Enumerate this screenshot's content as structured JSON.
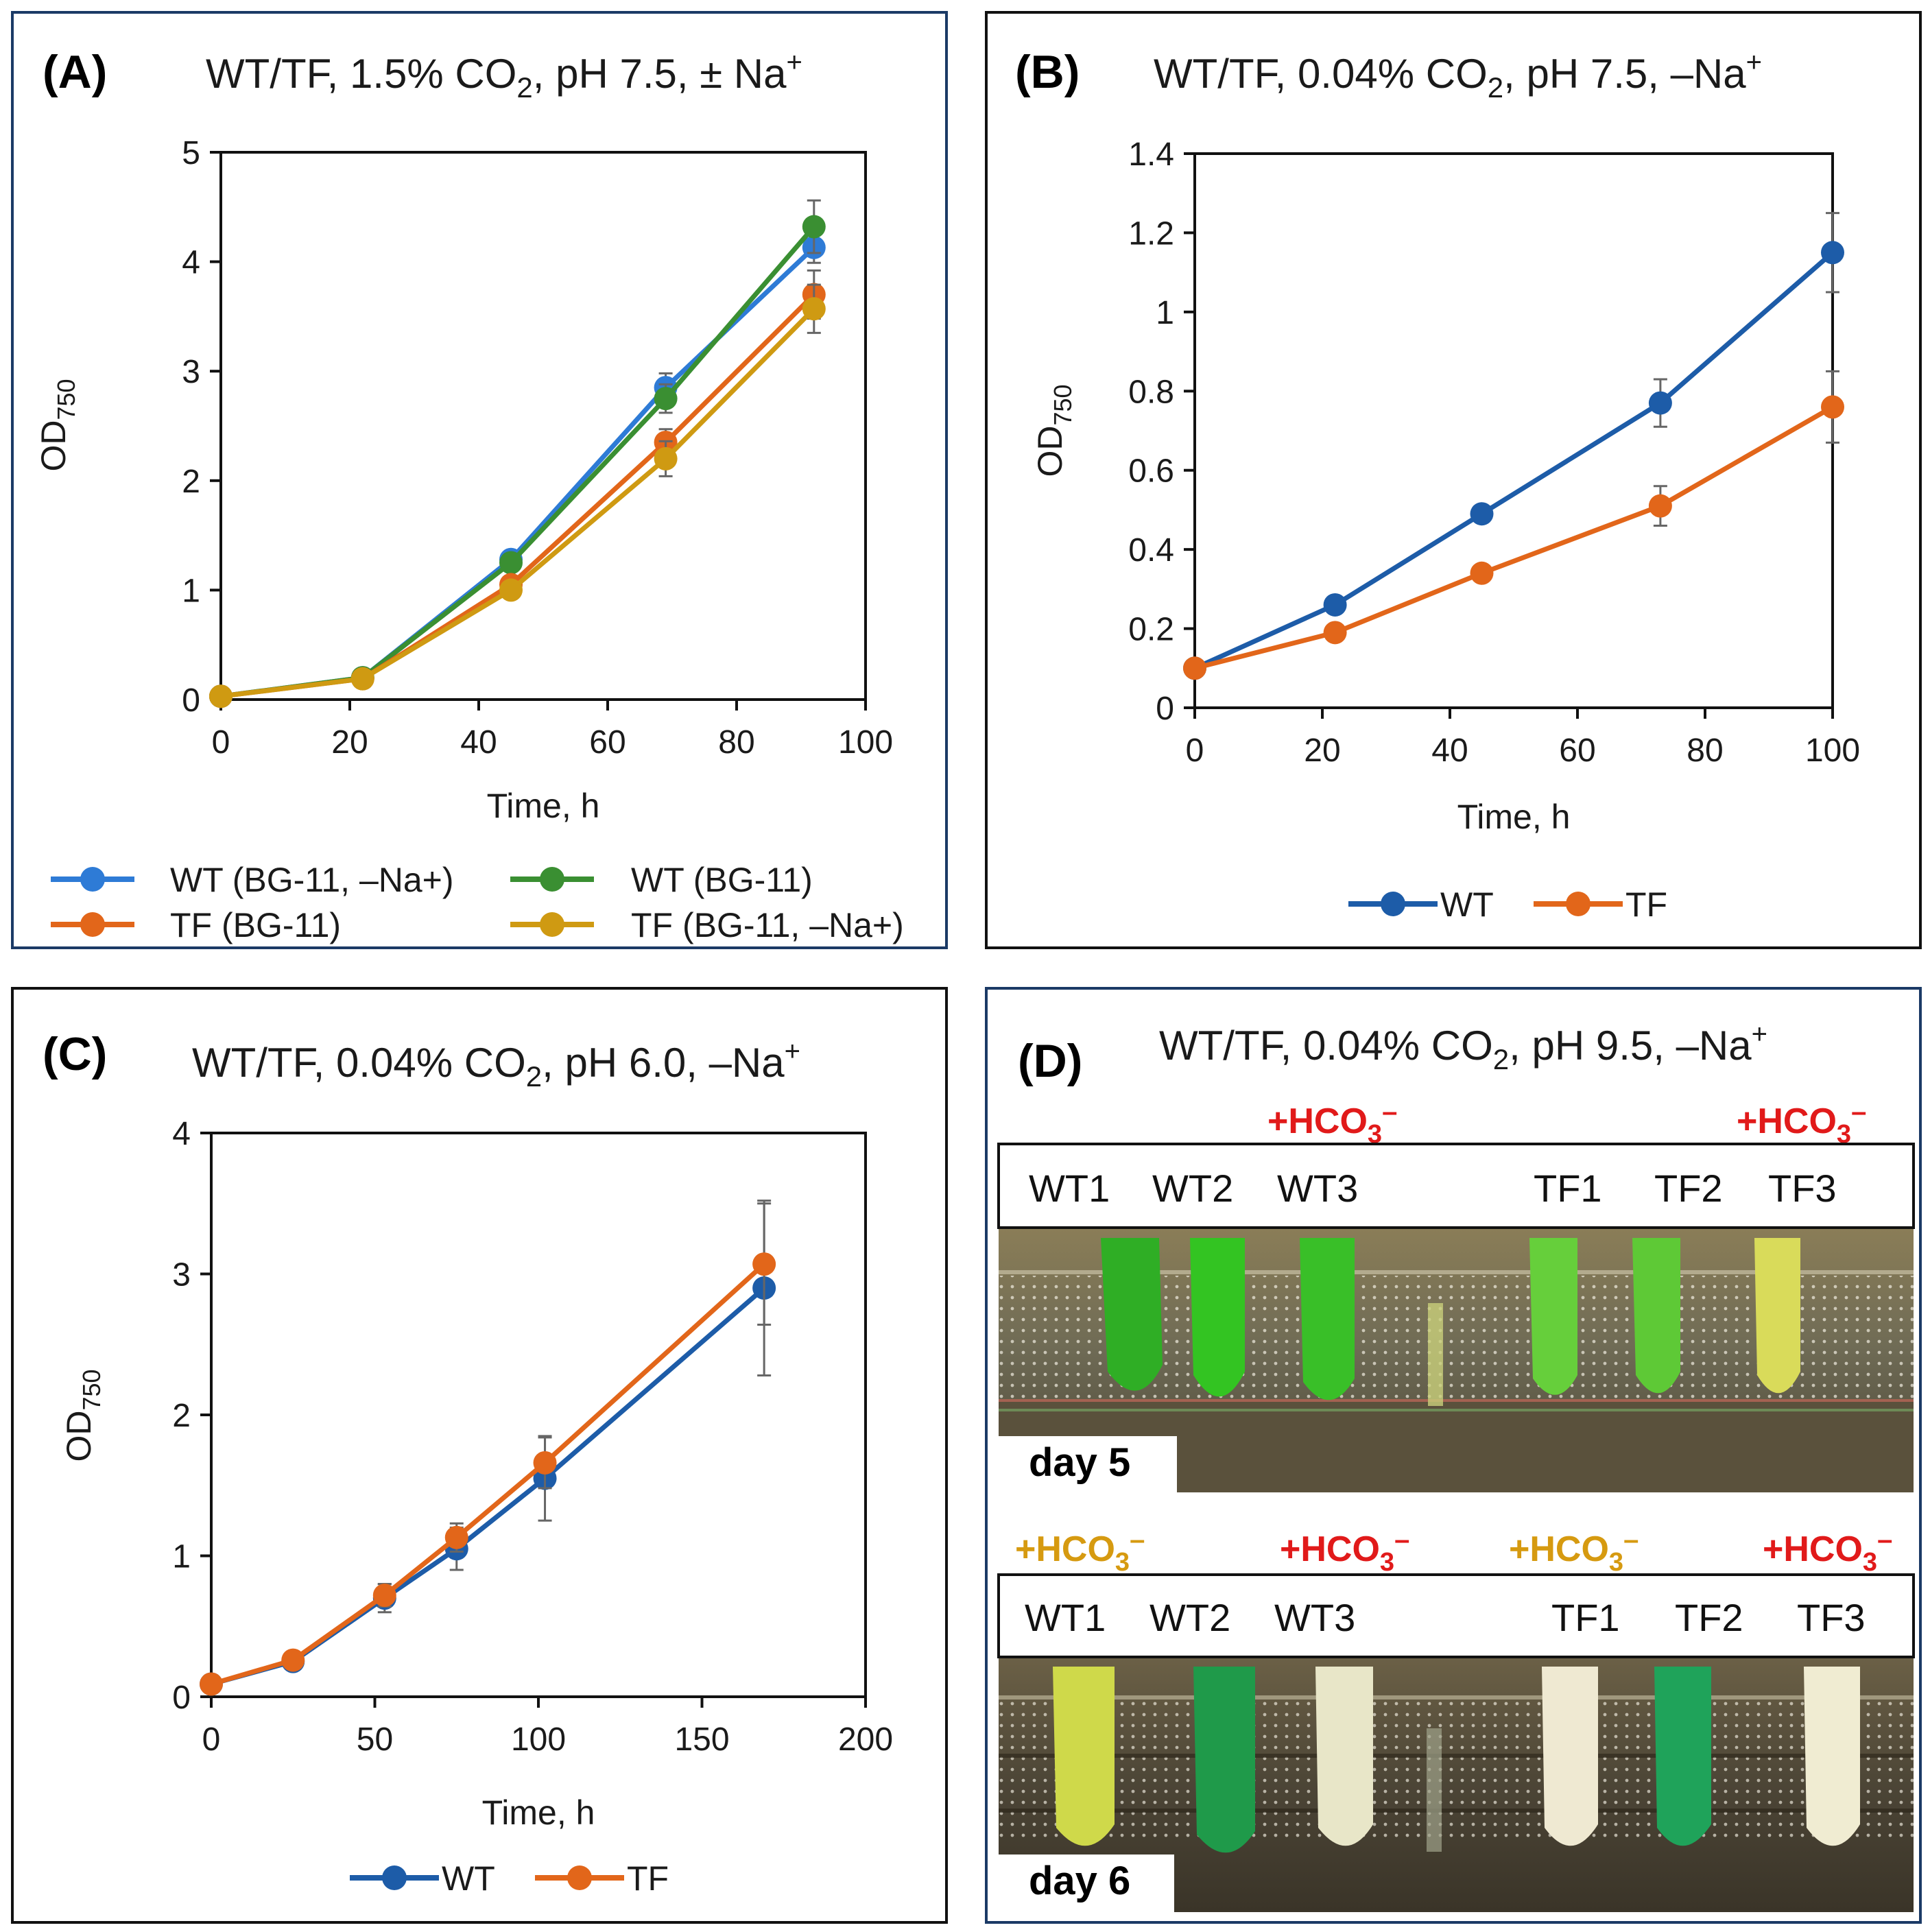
{
  "panels": {
    "A": {
      "label": "(A)",
      "title": "WT/TF, 1.5% CO",
      "title_sub": "2",
      "title_rest": ", pH 7.5, ± Na",
      "title_sup": "+"
    },
    "B": {
      "label": "(B)",
      "title": "WT/TF, 0.04% CO",
      "title_sub": "2",
      "title_rest": ", pH 7.5, –Na",
      "title_sup": "+"
    },
    "C": {
      "label": "(C)",
      "title": "WT/TF, 0.04% CO",
      "title_sub": "2",
      "title_rest": ", pH 6.0, –Na",
      "title_sup": "+"
    },
    "D": {
      "label": "(D)",
      "title": "WT/TF, 0.04% CO",
      "title_sub": "2",
      "title_rest": ", pH 9.5, –Na",
      "title_sup": "+"
    }
  },
  "colors": {
    "blue_light": "#2e7bd6",
    "green": "#3a8f32",
    "orange": "#e2661a",
    "gold": "#cf9a12",
    "blue_dark": "#1d5ca8",
    "errorbar": "#666666",
    "hco_red": "#e11a1a",
    "hco_gold": "#d69a10",
    "panel_border": "#1b3a66"
  },
  "chart_data": [
    {
      "id": "A",
      "type": "line",
      "xlabel": "Time, h",
      "ylabel": "OD",
      "ylabel_sub": "750",
      "xlim": [
        0,
        100
      ],
      "ylim": [
        0,
        5
      ],
      "xticks": [
        "0",
        "20",
        "40",
        "60",
        "80",
        "100"
      ],
      "yticks": [
        "0",
        "1",
        "2",
        "3",
        "4",
        "5"
      ],
      "legend_position": "bottom",
      "series": [
        {
          "name": "WT (BG-11, –Na+)",
          "color": "#2e7bd6",
          "x": [
            0,
            22,
            45,
            69,
            92
          ],
          "y": [
            0.03,
            0.2,
            1.28,
            2.85,
            4.13
          ],
          "err": [
            0,
            0,
            0,
            0.13,
            0.14
          ]
        },
        {
          "name": "WT (BG-11)",
          "color": "#3a8f32",
          "x": [
            0,
            22,
            45,
            69,
            92
          ],
          "y": [
            0.03,
            0.2,
            1.25,
            2.75,
            4.32
          ],
          "err": [
            0,
            0,
            0,
            0.13,
            0.24
          ]
        },
        {
          "name": "TF (BG-11)",
          "color": "#e2661a",
          "x": [
            0,
            22,
            45,
            69,
            92
          ],
          "y": [
            0.03,
            0.19,
            1.05,
            2.35,
            3.7
          ],
          "err": [
            0,
            0,
            0,
            0.12,
            0.22
          ]
        },
        {
          "name": "TF (BG-11, –Na+)",
          "color": "#cf9a12",
          "x": [
            0,
            22,
            45,
            69,
            92
          ],
          "y": [
            0.03,
            0.19,
            1.0,
            2.2,
            3.57
          ],
          "err": [
            0,
            0,
            0,
            0.16,
            0.22
          ]
        }
      ]
    },
    {
      "id": "B",
      "type": "line",
      "xlabel": "Time, h",
      "ylabel": "OD",
      "ylabel_sub": "750",
      "xlim": [
        0,
        100
      ],
      "ylim": [
        0,
        1.4
      ],
      "xticks": [
        "0",
        "20",
        "40",
        "60",
        "80",
        "100"
      ],
      "yticks": [
        "0",
        "0.2",
        "0.4",
        "0.6",
        "0.8",
        "1",
        "1.2",
        "1.4"
      ],
      "legend_position": "bottom",
      "series": [
        {
          "name": "WT",
          "color": "#1d5ca8",
          "x": [
            0,
            22,
            45,
            73,
            100
          ],
          "y": [
            0.1,
            0.26,
            0.49,
            0.77,
            1.15
          ],
          "err": [
            0,
            0,
            0,
            0.06,
            0.1
          ]
        },
        {
          "name": "TF",
          "color": "#e2661a",
          "x": [
            0,
            22,
            45,
            73,
            100
          ],
          "y": [
            0.1,
            0.19,
            0.34,
            0.51,
            0.76
          ],
          "err": [
            0,
            0,
            0,
            0.05,
            0.09
          ]
        }
      ]
    },
    {
      "id": "C",
      "type": "line",
      "xlabel": "Time, h",
      "ylabel": "OD",
      "ylabel_sub": "750",
      "xlim": [
        0,
        200
      ],
      "ylim": [
        0,
        4
      ],
      "xticks": [
        "0",
        "50",
        "100",
        "150",
        "200"
      ],
      "yticks": [
        "0",
        "1",
        "2",
        "3",
        "4"
      ],
      "legend_position": "bottom",
      "series": [
        {
          "name": "WT",
          "color": "#1d5ca8",
          "x": [
            0,
            25,
            53,
            75,
            102,
            169
          ],
          "y": [
            0.09,
            0.25,
            0.7,
            1.05,
            1.55,
            2.9
          ],
          "err": [
            0,
            0,
            0.1,
            0.15,
            0.3,
            0.62
          ]
        },
        {
          "name": "TF",
          "color": "#e2661a",
          "x": [
            0,
            25,
            53,
            75,
            102,
            169
          ],
          "y": [
            0.09,
            0.26,
            0.72,
            1.13,
            1.66,
            3.07
          ],
          "err": [
            0,
            0,
            0.08,
            0.1,
            0.18,
            0.43
          ]
        }
      ]
    }
  ],
  "photos": {
    "day5": {
      "day_label": "day 5",
      "tubes": [
        "WT1",
        "WT2",
        "WT3",
        "TF1",
        "TF2",
        "TF3"
      ],
      "hco_labels": [
        {
          "tube": "WT3",
          "text": "+HCO",
          "sub": "3",
          "sup": "–",
          "color": "#e11a1a"
        },
        {
          "tube": "TF3",
          "text": "+HCO",
          "sub": "3",
          "sup": "–",
          "color": "#e11a1a"
        }
      ]
    },
    "day6": {
      "day_label": "day 6",
      "tubes": [
        "WT1",
        "WT2",
        "WT3",
        "TF1",
        "TF2",
        "TF3"
      ],
      "hco_labels": [
        {
          "tube": "WT1",
          "text": "+HCO",
          "sub": "3",
          "sup": "–",
          "color": "#d69a10"
        },
        {
          "tube": "WT3",
          "text": "+HCO",
          "sub": "3",
          "sup": "–",
          "color": "#e11a1a"
        },
        {
          "tube": "TF1",
          "text": "+HCO",
          "sub": "3",
          "sup": "–",
          "color": "#d69a10"
        },
        {
          "tube": "TF3",
          "text": "+HCO",
          "sub": "3",
          "sup": "–",
          "color": "#e11a1a"
        }
      ]
    }
  }
}
